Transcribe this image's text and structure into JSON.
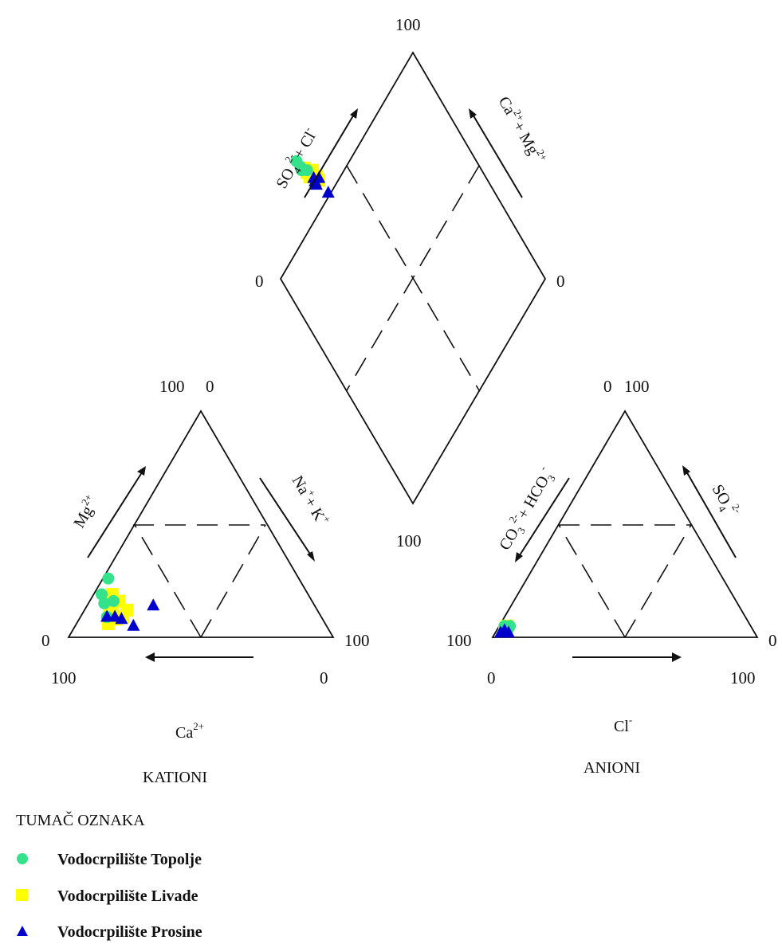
{
  "chart_data": {
    "type": "scatter",
    "subtype": "piper-trilinear",
    "title": "",
    "series": [
      {
        "name": "Vodocrpilište Topolje",
        "color": "#33e28a",
        "marker": "circle",
        "cations": [
          {
            "ca": 72,
            "mg": 26,
            "na_k": 2
          },
          {
            "ca": 78,
            "mg": 19,
            "na_k": 3
          },
          {
            "ca": 75,
            "mg": 16,
            "na_k": 9
          },
          {
            "ca": 79,
            "mg": 15,
            "na_k": 6
          },
          {
            "ca": 81,
            "mg": 9,
            "na_k": 10
          }
        ],
        "anions": [
          {
            "hco3_co3": 92,
            "so4": 4,
            "cl": 4
          },
          {
            "hco3_co3": 93,
            "so4": 5,
            "cl": 2
          },
          {
            "hco3_co3": 94,
            "so4": 3,
            "cl": 3
          },
          {
            "hco3_co3": 91,
            "so4": 5,
            "cl": 4
          }
        ],
        "diamond": [
          {
            "so4_cl": 8,
            "ca_mg": 96
          },
          {
            "so4_cl": 7,
            "ca_mg": 92
          },
          {
            "so4_cl": 6,
            "ca_mg": 90
          },
          {
            "so4_cl": 8,
            "ca_mg": 88
          }
        ]
      },
      {
        "name": "Vodocrpilište Livade",
        "color": "#ffff00",
        "marker": "square",
        "cations": [
          {
            "ca": 74,
            "mg": 19,
            "na_k": 7
          },
          {
            "ca": 73,
            "mg": 16,
            "na_k": 11
          },
          {
            "ca": 72,
            "mg": 12,
            "na_k": 16
          },
          {
            "ca": 77,
            "mg": 13,
            "na_k": 10
          },
          {
            "ca": 79,
            "mg": 11,
            "na_k": 10
          },
          {
            "ca": 82,
            "mg": 6,
            "na_k": 12
          },
          {
            "ca": 75,
            "mg": 9,
            "na_k": 16
          },
          {
            "ca": 78,
            "mg": 8,
            "na_k": 14
          }
        ],
        "anions": [
          {
            "hco3_co3": 92,
            "so4": 5,
            "cl": 3
          },
          {
            "hco3_co3": 94,
            "so4": 3,
            "cl": 3
          },
          {
            "hco3_co3": 93,
            "so4": 4,
            "cl": 3
          }
        ],
        "diamond": [
          {
            "so4_cl": 8,
            "ca_mg": 90
          },
          {
            "so4_cl": 7,
            "ca_mg": 87
          },
          {
            "so4_cl": 10,
            "ca_mg": 86
          },
          {
            "so4_cl": 6,
            "ca_mg": 84
          },
          {
            "so4_cl": 9,
            "ca_mg": 82
          },
          {
            "so4_cl": 8,
            "ca_mg": 79
          }
        ]
      },
      {
        "name": "Vodocrpilište Prosine",
        "color": "#0000cc",
        "marker": "triangle",
        "cations": [
          {
            "ca": 81,
            "mg": 9,
            "na_k": 10
          },
          {
            "ca": 78,
            "mg": 9,
            "na_k": 13
          },
          {
            "ca": 76,
            "mg": 8,
            "na_k": 16
          },
          {
            "ca": 73,
            "mg": 5,
            "na_k": 22
          },
          {
            "ca": 61,
            "mg": 14,
            "na_k": 25
          }
        ],
        "anions": [
          {
            "hco3_co3": 96,
            "so4": 2,
            "cl": 2
          },
          {
            "hco3_co3": 94,
            "so4": 3,
            "cl": 3
          },
          {
            "hco3_co3": 93,
            "so4": 2,
            "cl": 5
          }
        ],
        "diamond": [
          {
            "so4_cl": 7,
            "ca_mg": 82
          },
          {
            "so4_cl": 6,
            "ca_mg": 80
          },
          {
            "so4_cl": 9,
            "ca_mg": 80
          },
          {
            "so4_cl": 5,
            "ca_mg": 78
          },
          {
            "so4_cl": 6,
            "ca_mg": 70
          }
        ]
      }
    ],
    "triangles": {
      "cations": {
        "name": "KATIONI",
        "bottom_label": "Ca",
        "bottom_label_sup": "2+",
        "left_label": "Mg",
        "left_label_sup": "2+",
        "right_label": "Na",
        "right_label_sup": "+",
        "right_label2": "+ K",
        "right_label2_sup": "+",
        "ticks": {
          "top_left": "100",
          "top_right": "0",
          "left_corner": "0",
          "right_corner": "100",
          "bottom_left": "100",
          "bottom_right": "0"
        }
      },
      "anions": {
        "name": "ANIONI",
        "bottom_label": "Cl",
        "bottom_label_sup": "-",
        "left_label": "CO",
        "left_label_sub": "3",
        "left_label_sup": "2-",
        "left_label2": "+ HCO",
        "left_label2_sub": "3",
        "left_label2_sup": "-",
        "right_label": "SO",
        "right_label_sub": "4",
        "right_label_sup": "2-",
        "ticks": {
          "top_left": "0",
          "top_right": "100",
          "left_corner": "100",
          "right_corner": "0",
          "bottom_left": "0",
          "bottom_right": "100"
        }
      },
      "diamond": {
        "left_label": "SO",
        "left_label_sub": "4",
        "left_label_sup": "2-",
        "left_label2": "+ Cl",
        "left_label2_sup": "-",
        "right_label": "Ca",
        "right_label_sup": "2+",
        "right_label2": "+ Mg",
        "right_label2_sup": "2+",
        "ticks": {
          "top": "100",
          "left": "0",
          "right": "0",
          "bottom": "100"
        }
      }
    },
    "legend": {
      "title": "TUMAČ OZNAKA",
      "placement": "bottom-left"
    }
  }
}
